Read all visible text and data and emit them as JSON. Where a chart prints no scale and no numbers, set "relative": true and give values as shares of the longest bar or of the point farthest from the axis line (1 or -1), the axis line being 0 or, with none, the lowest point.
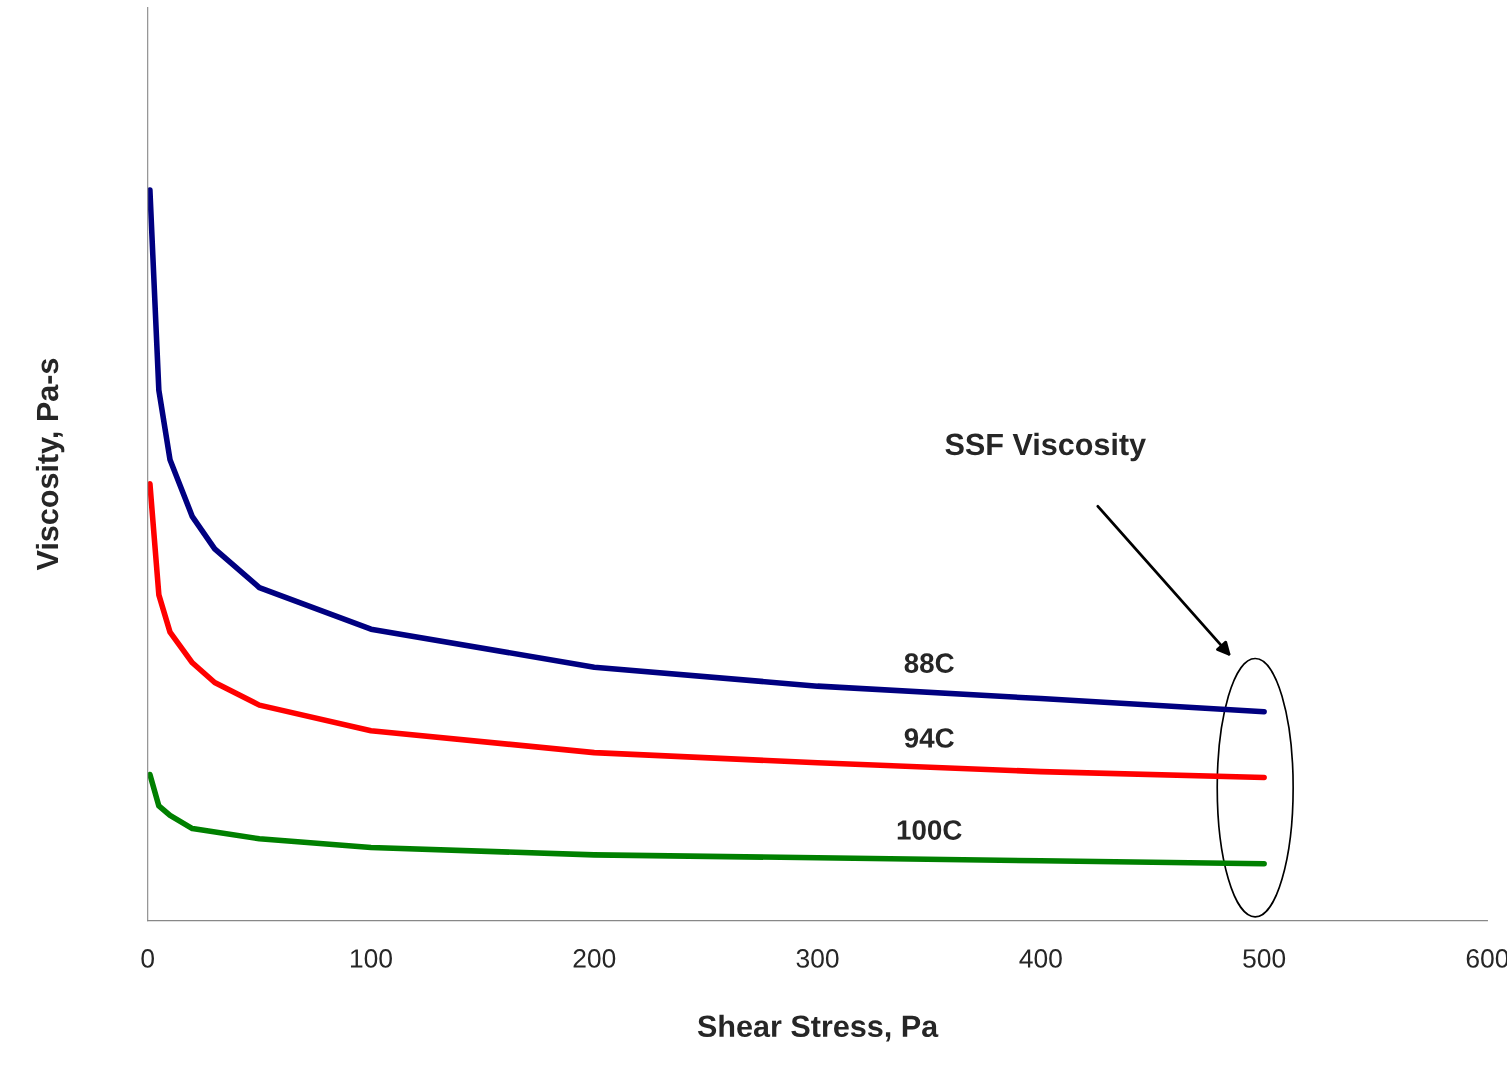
{
  "chart_data": {
    "type": "line",
    "relative": true,
    "xlabel": "Shear Stress, Pa",
    "ylabel": "Viscosity, Pa-s",
    "xlim": [
      0,
      600
    ],
    "xticks": [
      0,
      100,
      200,
      300,
      400,
      500,
      600
    ],
    "grid": false,
    "legend": false,
    "marker": "none",
    "line_style": "solid",
    "annotations": [
      "SSF Viscosity"
    ],
    "series": [
      {
        "name": "88C",
        "color": "#000080",
        "x": [
          1,
          5,
          10,
          20,
          30,
          50,
          100,
          200,
          300,
          400,
          500
        ],
        "values": [
          1.0,
          0.726,
          0.631,
          0.553,
          0.509,
          0.456,
          0.399,
          0.347,
          0.321,
          0.304,
          0.286
        ]
      },
      {
        "name": "94C",
        "color": "#ff0000",
        "x": [
          1,
          5,
          10,
          20,
          30,
          50,
          100,
          200,
          300,
          400,
          500
        ],
        "values": [
          0.598,
          0.446,
          0.395,
          0.353,
          0.326,
          0.295,
          0.26,
          0.23,
          0.216,
          0.204,
          0.196
        ]
      },
      {
        "name": "100C",
        "color": "#008000",
        "x": [
          1,
          5,
          10,
          20,
          50,
          100,
          200,
          300,
          400,
          500
        ],
        "values": [
          0.2,
          0.157,
          0.144,
          0.126,
          0.112,
          0.1,
          0.09,
          0.086,
          0.082,
          0.078
        ]
      }
    ]
  }
}
